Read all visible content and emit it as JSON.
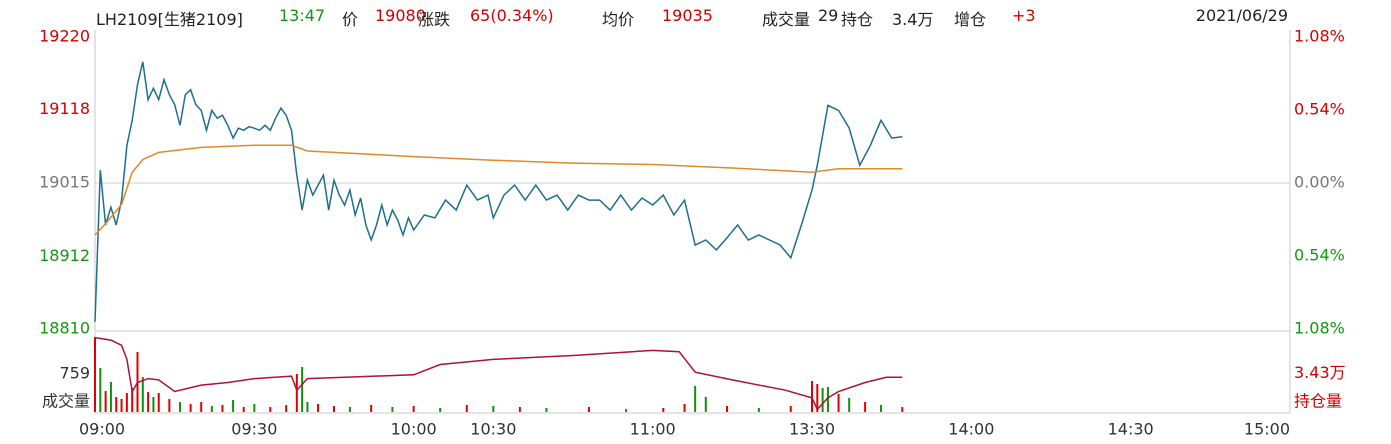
{
  "header": {
    "symbol": "LH2109[生猪2109]",
    "time": "13:47",
    "price_label": "价",
    "price": "19080",
    "change_label": "涨跌",
    "change": "65(0.34%)",
    "avg_label": "均价",
    "avg": "19035",
    "volume_label": "成交量",
    "volume": "29",
    "oi_label": "持仓",
    "oi": "3.4万",
    "oi_change_label": "增仓",
    "oi_change": "+3",
    "date": "2021/06/29"
  },
  "chart_data": [
    {
      "type": "line",
      "xlim": [
        "09:00",
        "15:00"
      ],
      "ylim": [
        18810,
        19220
      ],
      "yticks": [
        19220,
        19118,
        19015,
        18912,
        18810
      ],
      "y2lim": [
        -1.08,
        1.08
      ],
      "y2ticks": [
        {
          "value": 1.08,
          "label": "1.08%"
        },
        {
          "value": 0.54,
          "label": "0.54%"
        },
        {
          "value": 0,
          "label": "0.00%"
        },
        {
          "value": -0.54,
          "label": "0.54%"
        },
        {
          "value": -1.08,
          "label": "1.08%"
        }
      ],
      "series": [
        {
          "color": "#1e6e8e",
          "x": [
            "09:00",
            "09:01",
            "09:02",
            "09:03",
            "09:04",
            "09:05",
            "09:06",
            "09:07",
            "09:08",
            "09:09",
            "09:10",
            "09:11",
            "09:12",
            "09:13",
            "09:14",
            "09:15",
            "09:16",
            "09:17",
            "09:18",
            "09:19",
            "09:20",
            "09:21",
            "09:22",
            "09:23",
            "09:24",
            "09:25",
            "09:26",
            "09:27",
            "09:28",
            "09:29",
            "09:30",
            "09:31",
            "09:32",
            "09:33",
            "09:34",
            "09:35",
            "09:36",
            "09:37",
            "09:38",
            "09:39",
            "09:40",
            "09:41",
            "09:42",
            "09:43",
            "09:44",
            "09:45",
            "09:46",
            "09:47",
            "09:48",
            "09:49",
            "09:50",
            "09:51",
            "09:52",
            "09:53",
            "09:54",
            "09:55",
            "09:56",
            "09:57",
            "09:58",
            "09:59",
            "10:00",
            "10:02",
            "10:04",
            "10:06",
            "10:08",
            "10:10",
            "10:12",
            "10:14",
            "10:15",
            "10:32",
            "10:34",
            "10:36",
            "10:38",
            "10:40",
            "10:42",
            "10:44",
            "10:46",
            "10:48",
            "10:50",
            "10:52",
            "10:54",
            "10:56",
            "10:58",
            "11:00",
            "11:02",
            "11:04",
            "11:06",
            "11:08",
            "11:10",
            "11:12",
            "11:14",
            "11:16",
            "11:18",
            "11:20",
            "11:22",
            "11:24",
            "11:26",
            "11:28",
            "11:30",
            "13:31",
            "13:33",
            "13:35",
            "13:37",
            "13:39",
            "13:41",
            "13:43",
            "13:45",
            "13:47"
          ],
          "values": [
            18820,
            19033,
            18956,
            18981,
            18956,
            18991,
            19068,
            19103,
            19153,
            19185,
            19132,
            19148,
            19132,
            19160,
            19139,
            19125,
            19096,
            19139,
            19146,
            19125,
            19117,
            19089,
            19117,
            19106,
            19110,
            19096,
            19078,
            19092,
            19089,
            19094,
            19092,
            19089,
            19096,
            19089,
            19106,
            19120,
            19110,
            19089,
            19026,
            18977,
            19019,
            18998,
            19012,
            19026,
            18977,
            19019,
            18998,
            18984,
            19005,
            18970,
            18994,
            18956,
            18935,
            18956,
            18984,
            18956,
            18977,
            18963,
            18942,
            18966,
            18949,
            18970,
            18966,
            18991,
            18977,
            19012,
            18991,
            18998,
            18966,
            18998,
            19012,
            18991,
            19012,
            18991,
            18998,
            18977,
            18998,
            18991,
            18991,
            18977,
            18998,
            18977,
            18994,
            18984,
            18998,
            18970,
            18991,
            18928,
            18935,
            18921,
            18938,
            18956,
            18935,
            18942,
            18935,
            18928,
            18910,
            18956,
            19005,
            19040,
            19124,
            19117,
            19092,
            19040,
            19068,
            19103,
            19078,
            19080
          ]
        },
        {
          "color": "#e08a2a",
          "x": [
            "09:00",
            "09:02",
            "09:05",
            "09:07",
            "09:09",
            "09:12",
            "09:20",
            "09:30",
            "09:37",
            "09:40",
            "10:00",
            "10:15",
            "10:45",
            "11:00",
            "11:15",
            "11:30",
            "13:35",
            "13:47"
          ],
          "values": [
            18942,
            18958,
            18985,
            19030,
            19048,
            19058,
            19065,
            19068,
            19068,
            19060,
            19052,
            19047,
            19043,
            19041,
            19036,
            19030,
            19035,
            19035
          ]
        }
      ]
    },
    {
      "type": "bar",
      "xlim": [
        "09:00",
        "15:00"
      ],
      "xticks": [
        "09:00",
        "09:30",
        "10:00",
        "10:30",
        "11:00",
        "13:30",
        "14:00",
        "14:30",
        "15:00"
      ],
      "ylim": [
        0,
        1540
      ],
      "yticks": [
        759
      ],
      "ylabel": "成交量",
      "y2lim": [
        3.4,
        3.46
      ],
      "y2ticks": [
        {
          "value": 3.43,
          "label": "3.43万"
        }
      ],
      "y2label": "持仓量",
      "x": [
        "09:00",
        "09:01",
        "09:02",
        "09:03",
        "09:04",
        "09:05",
        "09:06",
        "09:07",
        "09:08",
        "09:09",
        "09:10",
        "09:11",
        "09:12",
        "09:14",
        "09:16",
        "09:18",
        "09:20",
        "09:22",
        "09:24",
        "09:26",
        "09:28",
        "09:30",
        "09:33",
        "09:36",
        "09:38",
        "09:39",
        "09:40",
        "09:42",
        "09:45",
        "09:48",
        "09:52",
        "09:56",
        "10:00",
        "10:05",
        "10:10",
        "10:15",
        "10:35",
        "10:40",
        "10:48",
        "10:55",
        "11:02",
        "11:06",
        "11:08",
        "11:10",
        "11:14",
        "11:20",
        "11:26",
        "11:30",
        "13:30",
        "13:31",
        "13:32",
        "13:33",
        "13:35",
        "13:37",
        "13:40",
        "13:43",
        "13:47"
      ],
      "values": [
        1500,
        880,
        420,
        600,
        300,
        260,
        380,
        480,
        1200,
        700,
        400,
        300,
        380,
        260,
        200,
        160,
        200,
        120,
        140,
        240,
        100,
        160,
        100,
        140,
        760,
        900,
        200,
        160,
        120,
        100,
        140,
        100,
        120,
        80,
        140,
        120,
        100,
        80,
        100,
        60,
        80,
        160,
        520,
        300,
        120,
        80,
        120,
        220,
        620,
        560,
        480,
        500,
        360,
        280,
        200,
        140,
        100
      ],
      "colors": [
        "#e00000",
        "#109010",
        "#e00000",
        "#109010",
        "#e00000",
        "#e00000",
        "#e00000",
        "#e00000",
        "#e00000",
        "#109010",
        "#e00000",
        "#109010",
        "#e00000",
        "#e00000",
        "#109010",
        "#e00000",
        "#e00000",
        "#109010",
        "#e00000",
        "#109010",
        "#e00000",
        "#109010",
        "#e00000",
        "#e00000",
        "#e00000",
        "#109010",
        "#109010",
        "#e00000",
        "#e00000",
        "#109010",
        "#e00000",
        "#109010",
        "#e00000",
        "#109010",
        "#e00000",
        "#109010",
        "#e00000",
        "#109010",
        "#e00000",
        "#109010",
        "#e00000",
        "#e00000",
        "#109010",
        "#109010",
        "#e00000",
        "#109010",
        "#e00000",
        "#109010",
        "#e00000",
        "#e00000",
        "#109010",
        "#109010",
        "#e00000",
        "#109010",
        "#e00000",
        "#109010",
        "#e00000"
      ],
      "series": [
        {
          "color": "#b0103a",
          "axis": "y2",
          "x": [
            "09:00",
            "09:03",
            "09:05",
            "09:06",
            "09:07",
            "09:08",
            "09:10",
            "09:12",
            "09:15",
            "09:20",
            "09:25",
            "09:30",
            "09:37",
            "09:38",
            "09:40",
            "10:00",
            "10:05",
            "10:15",
            "10:45",
            "11:00",
            "11:05",
            "11:08",
            "11:15",
            "11:25",
            "11:30",
            "13:31",
            "13:33",
            "13:35",
            "13:40",
            "13:44",
            "13:47"
          ],
          "values": [
            3.458,
            3.456,
            3.452,
            3.441,
            3.416,
            3.423,
            3.426,
            3.425,
            3.416,
            3.421,
            3.423,
            3.426,
            3.428,
            3.417,
            3.426,
            3.429,
            3.437,
            3.441,
            3.444,
            3.448,
            3.447,
            3.431,
            3.425,
            3.417,
            3.411,
            3.402,
            3.411,
            3.416,
            3.423,
            3.427,
            3.427
          ]
        }
      ]
    }
  ]
}
